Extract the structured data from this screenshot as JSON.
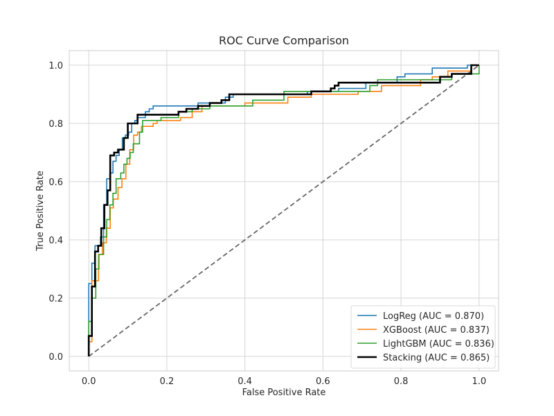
{
  "chart_data": {
    "type": "line",
    "title": "ROC Curve Comparison",
    "xlabel": "False Positive Rate",
    "ylabel": "True Positive Rate",
    "xlim": [
      -0.05,
      1.05
    ],
    "ylim": [
      -0.05,
      1.05
    ],
    "xticks": [
      0.0,
      0.2,
      0.4,
      0.6,
      0.8,
      1.0
    ],
    "yticks": [
      0.0,
      0.2,
      0.4,
      0.6,
      0.8,
      1.0
    ],
    "xtick_labels": [
      "0.0",
      "0.2",
      "0.4",
      "0.6",
      "0.8",
      "1.0"
    ],
    "ytick_labels": [
      "0.0",
      "0.2",
      "0.4",
      "0.6",
      "0.8",
      "1.0"
    ],
    "grid": true,
    "legend_position": "lower-right",
    "diagonal": {
      "x": [
        0,
        1
      ],
      "y": [
        0,
        1
      ],
      "color": "#666666",
      "style": "dashed"
    },
    "series": [
      {
        "name": "LogReg (AUC = 0.870)",
        "color": "#1f77b4",
        "width": "normal",
        "x": [
          0,
          0,
          0.008,
          0.008,
          0.016,
          0.016,
          0.03,
          0.03,
          0.038,
          0.038,
          0.046,
          0.046,
          0.054,
          0.054,
          0.062,
          0.062,
          0.07,
          0.07,
          0.078,
          0.078,
          0.086,
          0.086,
          0.094,
          0.094,
          0.102,
          0.102,
          0.11,
          0.11,
          0.118,
          0.118,
          0.126,
          0.126,
          0.145,
          0.145,
          0.155,
          0.155,
          0.165,
          0.165,
          0.28,
          0.28,
          0.35,
          0.35,
          0.37,
          0.37,
          0.56,
          0.56,
          0.64,
          0.64,
          0.71,
          0.71,
          0.79,
          0.79,
          0.81,
          0.81,
          0.88,
          0.88,
          0.97,
          0.97,
          1.0
        ],
        "y": [
          0,
          0.25,
          0.25,
          0.32,
          0.32,
          0.38,
          0.38,
          0.41,
          0.41,
          0.52,
          0.52,
          0.61,
          0.61,
          0.63,
          0.63,
          0.67,
          0.67,
          0.69,
          0.69,
          0.71,
          0.71,
          0.75,
          0.75,
          0.76,
          0.76,
          0.77,
          0.77,
          0.8,
          0.8,
          0.81,
          0.81,
          0.82,
          0.82,
          0.84,
          0.84,
          0.85,
          0.85,
          0.86,
          0.86,
          0.87,
          0.87,
          0.89,
          0.89,
          0.9,
          0.9,
          0.91,
          0.91,
          0.92,
          0.92,
          0.94,
          0.94,
          0.96,
          0.96,
          0.97,
          0.97,
          0.99,
          0.99,
          1.0,
          1.0
        ]
      },
      {
        "name": "XGBoost (AUC = 0.837)",
        "color": "#ff7f0e",
        "width": "normal",
        "x": [
          0,
          0,
          0.008,
          0.008,
          0.025,
          0.025,
          0.035,
          0.035,
          0.045,
          0.045,
          0.055,
          0.055,
          0.063,
          0.063,
          0.075,
          0.075,
          0.085,
          0.085,
          0.095,
          0.095,
          0.105,
          0.105,
          0.115,
          0.115,
          0.125,
          0.125,
          0.135,
          0.135,
          0.165,
          0.165,
          0.175,
          0.175,
          0.235,
          0.235,
          0.265,
          0.265,
          0.29,
          0.29,
          0.4,
          0.4,
          0.51,
          0.51,
          0.57,
          0.57,
          0.69,
          0.69,
          0.75,
          0.75,
          0.85,
          0.85,
          0.88,
          0.88,
          0.92,
          0.92,
          0.98,
          0.98,
          1.0
        ],
        "y": [
          0,
          0.05,
          0.05,
          0.26,
          0.26,
          0.35,
          0.35,
          0.39,
          0.39,
          0.44,
          0.44,
          0.51,
          0.51,
          0.54,
          0.54,
          0.58,
          0.58,
          0.61,
          0.61,
          0.66,
          0.66,
          0.71,
          0.71,
          0.76,
          0.76,
          0.77,
          0.77,
          0.79,
          0.79,
          0.8,
          0.8,
          0.81,
          0.81,
          0.82,
          0.82,
          0.84,
          0.84,
          0.86,
          0.86,
          0.87,
          0.87,
          0.89,
          0.89,
          0.9,
          0.9,
          0.91,
          0.91,
          0.93,
          0.93,
          0.95,
          0.95,
          0.96,
          0.96,
          0.98,
          0.98,
          1.0,
          1.0
        ]
      },
      {
        "name": "LightGBM (AUC = 0.836)",
        "color": "#2ca02c",
        "width": "normal",
        "x": [
          0,
          0,
          0.008,
          0.008,
          0.018,
          0.018,
          0.026,
          0.026,
          0.038,
          0.038,
          0.046,
          0.046,
          0.054,
          0.054,
          0.062,
          0.062,
          0.07,
          0.07,
          0.082,
          0.082,
          0.09,
          0.09,
          0.098,
          0.098,
          0.106,
          0.106,
          0.114,
          0.114,
          0.13,
          0.13,
          0.138,
          0.138,
          0.185,
          0.185,
          0.23,
          0.23,
          0.265,
          0.265,
          0.31,
          0.31,
          0.42,
          0.42,
          0.5,
          0.5,
          0.72,
          0.72,
          0.74,
          0.74,
          0.93,
          0.93,
          1.0,
          1.0
        ],
        "y": [
          0,
          0.12,
          0.12,
          0.2,
          0.2,
          0.3,
          0.3,
          0.35,
          0.35,
          0.41,
          0.41,
          0.47,
          0.47,
          0.52,
          0.52,
          0.56,
          0.56,
          0.61,
          0.61,
          0.63,
          0.63,
          0.66,
          0.66,
          0.68,
          0.68,
          0.7,
          0.7,
          0.73,
          0.73,
          0.77,
          0.77,
          0.81,
          0.81,
          0.82,
          0.82,
          0.84,
          0.84,
          0.85,
          0.85,
          0.86,
          0.86,
          0.88,
          0.88,
          0.91,
          0.91,
          0.93,
          0.93,
          0.95,
          0.95,
          0.97,
          0.97,
          1.0
        ]
      },
      {
        "name": "Stacking (AUC = 0.865)",
        "color": "#000000",
        "width": "thick",
        "x": [
          0,
          0,
          0.008,
          0.008,
          0.016,
          0.016,
          0.024,
          0.024,
          0.032,
          0.032,
          0.04,
          0.04,
          0.048,
          0.048,
          0.055,
          0.055,
          0.065,
          0.065,
          0.075,
          0.075,
          0.09,
          0.09,
          0.1,
          0.1,
          0.125,
          0.125,
          0.23,
          0.23,
          0.25,
          0.25,
          0.28,
          0.28,
          0.31,
          0.31,
          0.34,
          0.34,
          0.36,
          0.36,
          0.57,
          0.57,
          0.62,
          0.62,
          0.63,
          0.63,
          0.64,
          0.64,
          0.9,
          0.9,
          0.93,
          0.93,
          0.98,
          0.98,
          1.0
        ],
        "y": [
          0,
          0.07,
          0.07,
          0.24,
          0.24,
          0.36,
          0.36,
          0.38,
          0.38,
          0.44,
          0.44,
          0.52,
          0.52,
          0.57,
          0.57,
          0.69,
          0.69,
          0.7,
          0.7,
          0.71,
          0.71,
          0.75,
          0.75,
          0.8,
          0.8,
          0.83,
          0.83,
          0.84,
          0.84,
          0.85,
          0.85,
          0.86,
          0.86,
          0.87,
          0.87,
          0.88,
          0.88,
          0.9,
          0.9,
          0.91,
          0.91,
          0.92,
          0.92,
          0.93,
          0.93,
          0.94,
          0.94,
          0.96,
          0.96,
          0.97,
          0.97,
          1.0,
          1.0
        ]
      }
    ]
  }
}
